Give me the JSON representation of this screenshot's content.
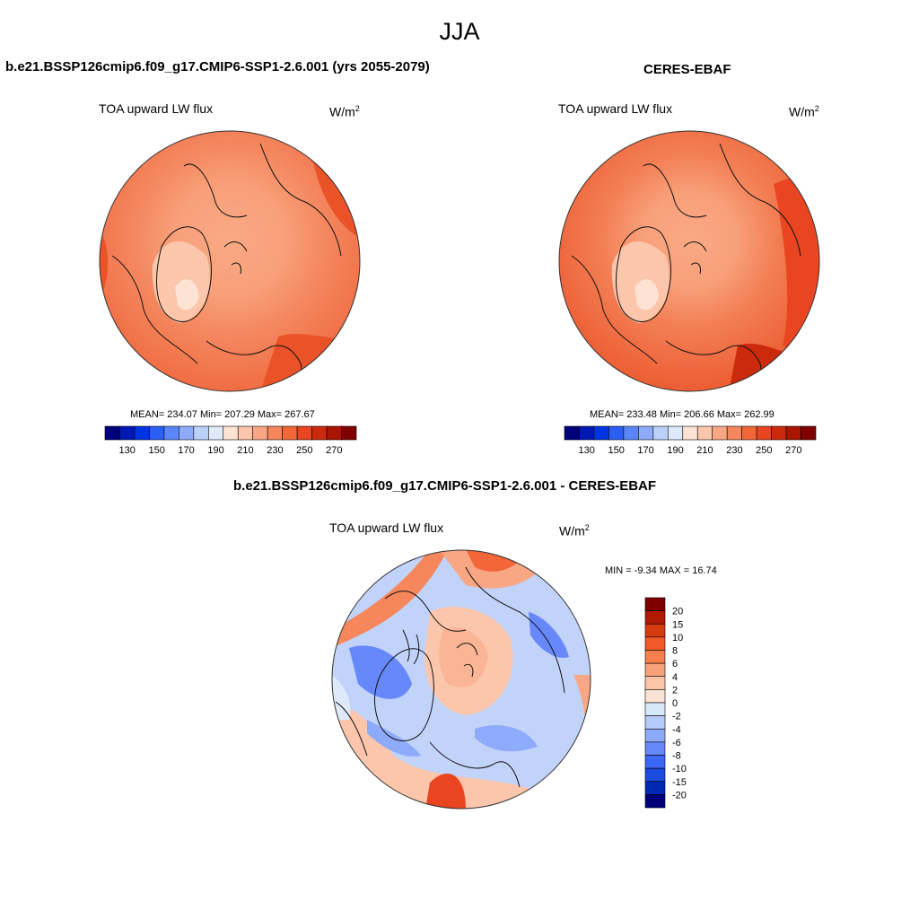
{
  "header": {
    "title": "JJA"
  },
  "units": {
    "prefix": "W/m",
    "sup": "2"
  },
  "field_title": "TOA upward LW flux",
  "panels": [
    {
      "title": "b.e21.BSSP126cmip6.f09_g17.CMIP6-SSP1-2.6.001 (yrs 2055-2079)",
      "stats": "MEAN= 234.07  Min= 207.29  Max= 267.67"
    },
    {
      "title": "CERES-EBAF",
      "stats": "MEAN= 233.48  Min= 206.66  Max= 262.99"
    }
  ],
  "diff": {
    "title": "b.e21.BSSP126cmip6.f09_g17.CMIP6-SSP1-2.6.001 - CERES-EBAF",
    "stats": "MIN =  -9.34 MAX =  16.74"
  },
  "colorbar_abs": {
    "colors": [
      "#00007a",
      "#0018b4",
      "#0034e0",
      "#2a5ef5",
      "#5a86fa",
      "#8eaafa",
      "#bcd0fa",
      "#deeafa",
      "#fde3d3",
      "#fbc6ab",
      "#f8a683",
      "#f6865c",
      "#f26638",
      "#e84520",
      "#cc2a0c",
      "#a81400",
      "#800000"
    ],
    "ticks": [
      "130",
      "150",
      "170",
      "190",
      "210",
      "230",
      "250",
      "270"
    ]
  },
  "colorbar_diff": {
    "colors": [
      "#800000",
      "#b01a00",
      "#d83a10",
      "#f25a2a",
      "#f7804c",
      "#f9a27a",
      "#fbc6a8",
      "#fde3d2",
      "#d9e7fa",
      "#b6cbfa",
      "#8eaafa",
      "#6688fa",
      "#3d68f5",
      "#1a4ae0",
      "#0028b4",
      "#00007a"
    ],
    "ticks": [
      "20",
      "15",
      "10",
      "8",
      "6",
      "4",
      "2",
      "0",
      "-2",
      "-4",
      "-6",
      "-8",
      "-10",
      "-15",
      "-20"
    ]
  }
}
